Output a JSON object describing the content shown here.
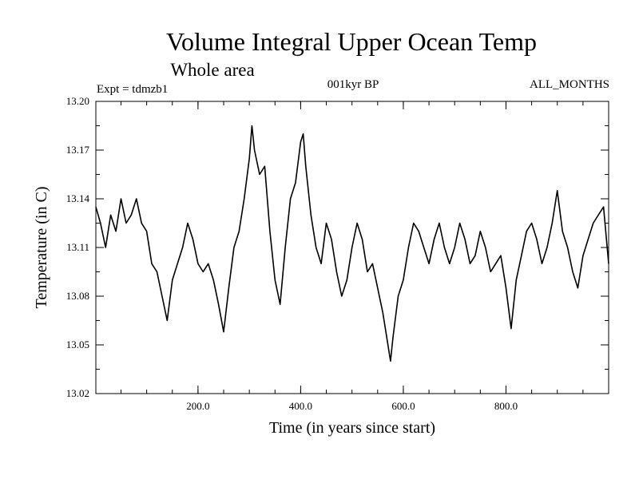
{
  "chart_data": {
    "type": "line",
    "title": "Volume Integral Upper Ocean Temp",
    "subtitle": "Whole area",
    "expt_label": "Expt = tdmzb1",
    "center_label": "001kyr BP",
    "right_label": "ALL_MONTHS",
    "xlabel": "Time (in years since start)",
    "ylabel": "Temperature (in C)",
    "xlim": [
      1,
      1000
    ],
    "ylim": [
      13.02,
      13.2
    ],
    "xticks": [
      200,
      400,
      600,
      800
    ],
    "xtick_labels": [
      "200.0",
      "400.0",
      "600.0",
      "800.0"
    ],
    "yticks": [
      13.02,
      13.05,
      13.08,
      13.11,
      13.14,
      13.17,
      13.2
    ],
    "ytick_labels": [
      "13.02",
      "13.05",
      "13.08",
      "13.11",
      "13.14",
      "13.17",
      "13.20"
    ],
    "line_color": "#000000",
    "series": [
      {
        "name": "Volume Integral Upper Ocean Temp",
        "x": [
          1,
          10,
          20,
          30,
          40,
          50,
          60,
          70,
          80,
          90,
          100,
          110,
          120,
          130,
          140,
          150,
          160,
          170,
          180,
          190,
          200,
          210,
          220,
          230,
          240,
          250,
          260,
          270,
          280,
          290,
          300,
          305,
          310,
          320,
          330,
          340,
          350,
          360,
          370,
          380,
          390,
          400,
          405,
          410,
          420,
          430,
          440,
          450,
          460,
          470,
          480,
          490,
          500,
          510,
          520,
          530,
          540,
          550,
          560,
          570,
          575,
          580,
          590,
          600,
          610,
          620,
          630,
          640,
          650,
          660,
          670,
          680,
          690,
          700,
          710,
          720,
          730,
          740,
          750,
          760,
          770,
          780,
          790,
          800,
          810,
          820,
          830,
          840,
          850,
          860,
          870,
          880,
          890,
          900,
          910,
          920,
          930,
          940,
          950,
          960,
          970,
          980,
          990,
          1000
        ],
        "values": [
          13.135,
          13.125,
          13.11,
          13.13,
          13.12,
          13.14,
          13.125,
          13.13,
          13.14,
          13.125,
          13.12,
          13.1,
          13.095,
          13.08,
          13.065,
          13.09,
          13.1,
          13.11,
          13.125,
          13.115,
          13.1,
          13.095,
          13.1,
          13.09,
          13.075,
          13.058,
          13.085,
          13.11,
          13.12,
          13.14,
          13.165,
          13.185,
          13.17,
          13.155,
          13.16,
          13.12,
          13.09,
          13.075,
          13.11,
          13.14,
          13.15,
          13.175,
          13.18,
          13.16,
          13.13,
          13.11,
          13.1,
          13.125,
          13.115,
          13.095,
          13.08,
          13.09,
          13.11,
          13.125,
          13.115,
          13.095,
          13.1,
          13.085,
          13.07,
          13.05,
          13.04,
          13.055,
          13.08,
          13.09,
          13.11,
          13.125,
          13.12,
          13.11,
          13.1,
          13.115,
          13.125,
          13.11,
          13.1,
          13.11,
          13.125,
          13.115,
          13.1,
          13.105,
          13.12,
          13.11,
          13.095,
          13.1,
          13.105,
          13.085,
          13.06,
          13.09,
          13.105,
          13.12,
          13.125,
          13.115,
          13.1,
          13.11,
          13.125,
          13.145,
          13.12,
          13.11,
          13.095,
          13.085,
          13.105,
          13.115,
          13.125,
          13.13,
          13.135,
          13.1
        ]
      }
    ]
  }
}
